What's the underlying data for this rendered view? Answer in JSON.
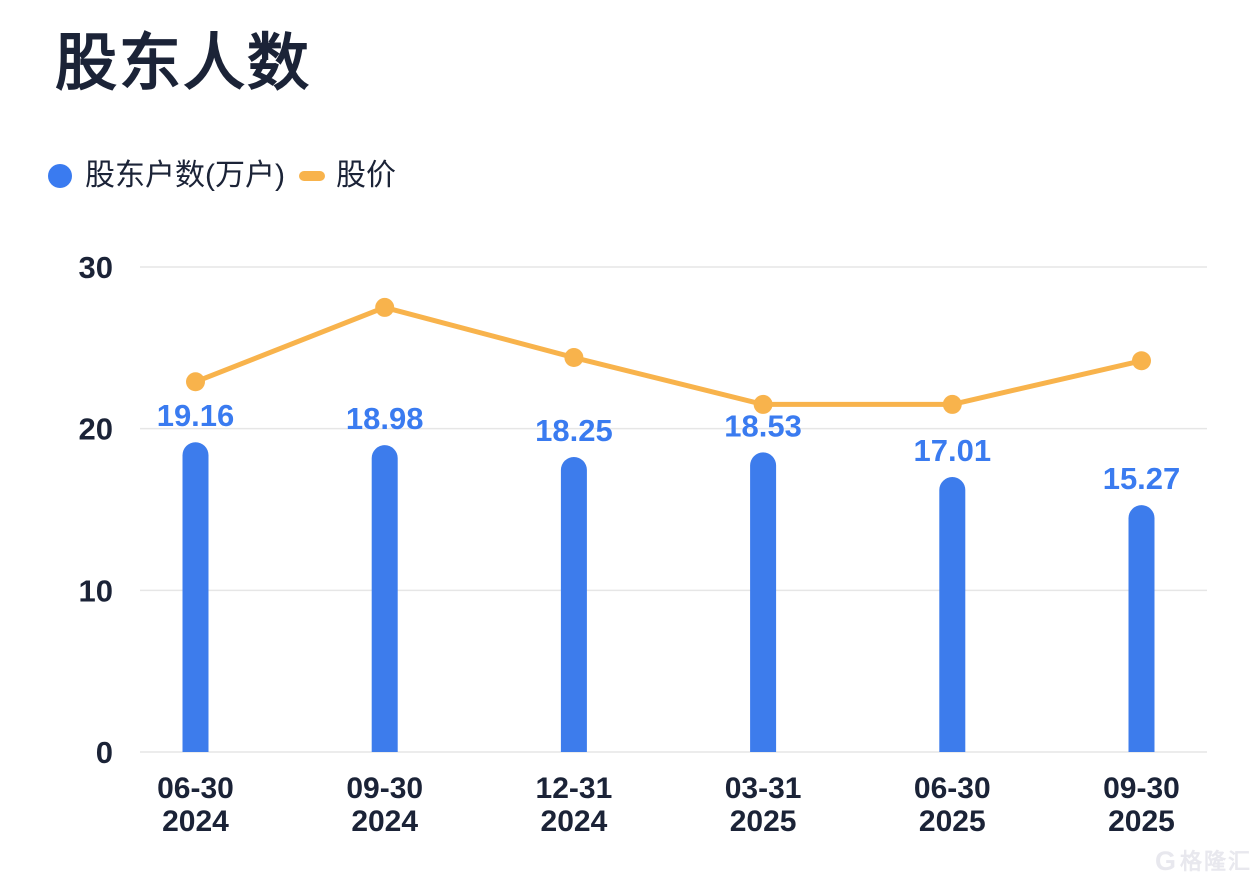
{
  "page": {
    "title": "股东人数",
    "background": "#ffffff"
  },
  "legend": {
    "items": [
      {
        "label": "股东户数(万户)",
        "marker": "circle-icon",
        "color": "#3a7bf0"
      },
      {
        "label": "股价",
        "marker": "dash-icon",
        "color": "#f8b34c"
      }
    ]
  },
  "chart_data": {
    "type": "bar",
    "title": "股东人数",
    "categories": [
      [
        "06-30",
        "2024"
      ],
      [
        "09-30",
        "2024"
      ],
      [
        "12-31",
        "2024"
      ],
      [
        "03-31",
        "2025"
      ],
      [
        "06-30",
        "2025"
      ],
      [
        "09-30",
        "2025"
      ]
    ],
    "series": [
      {
        "name": "股东户数(万户)",
        "type": "bar",
        "color": "#3d7cec",
        "values": [
          19.16,
          18.98,
          18.25,
          18.53,
          17.01,
          15.27
        ],
        "labels": [
          "19.16",
          "18.98",
          "18.25",
          "18.53",
          "17.01",
          "15.27"
        ],
        "label_color": "#3a7bf0"
      },
      {
        "name": "股价",
        "type": "line",
        "color": "#f8b34c",
        "values": [
          22.9,
          27.5,
          24.4,
          21.5,
          21.5,
          24.2
        ],
        "estimated_from_pixels": true
      }
    ],
    "xlabel": "",
    "ylabel": "",
    "yticks": [
      "0",
      "10",
      "20",
      "30"
    ],
    "ytick_values": [
      0,
      10,
      20,
      30
    ],
    "ylim": [
      0,
      30
    ],
    "grid": true,
    "gridline_color": "#e6e6e6",
    "tick_color": "#1b2337",
    "legend_position": "top-left"
  },
  "watermark": {
    "logo": "G",
    "text": "格隆汇",
    "color": "#e8e8ee"
  }
}
